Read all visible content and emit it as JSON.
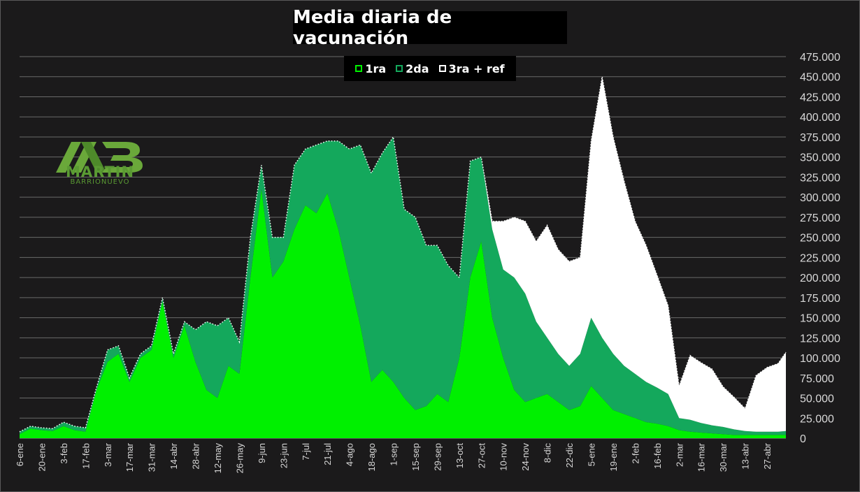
{
  "chart_data": {
    "type": "area",
    "title": "Media diaria de vacunación",
    "stacked": true,
    "x_start": "2021-01-06",
    "x_end": "2022-05-09",
    "ylim": [
      0,
      475000
    ],
    "yticks": [
      "0",
      "25.000",
      "50.000",
      "75.000",
      "100.000",
      "125.000",
      "150.000",
      "175.000",
      "200.000",
      "225.000",
      "250.000",
      "275.000",
      "300.000",
      "325.000",
      "350.000",
      "375.000",
      "400.000",
      "425.000",
      "450.000",
      "475.000"
    ],
    "xticks": [
      "6-ene",
      "20-ene",
      "3-feb",
      "17-feb",
      "3-mar",
      "17-mar",
      "31-mar",
      "14-abr",
      "28-abr",
      "12-may",
      "26-may",
      "9-jun",
      "23-jun",
      "7-jul",
      "21-jul",
      "4-ago",
      "18-ago",
      "1-sep",
      "15-sep",
      "29-sep",
      "13-oct",
      "27-oct",
      "10-nov",
      "24-nov",
      "8-dic",
      "22-dic",
      "5-ene",
      "19-ene",
      "2-feb",
      "16-feb",
      "2-mar",
      "16-mar",
      "30-mar",
      "13-abr",
      "27-abr"
    ],
    "grid": true,
    "legend_position": "top",
    "x": [
      "2021-01-06",
      "2021-01-13",
      "2021-01-20",
      "2021-01-27",
      "2021-02-03",
      "2021-02-10",
      "2021-02-17",
      "2021-02-24",
      "2021-03-03",
      "2021-03-10",
      "2021-03-17",
      "2021-03-24",
      "2021-03-31",
      "2021-04-07",
      "2021-04-14",
      "2021-04-21",
      "2021-04-28",
      "2021-05-05",
      "2021-05-12",
      "2021-05-19",
      "2021-05-26",
      "2021-06-02",
      "2021-06-09",
      "2021-06-16",
      "2021-06-23",
      "2021-06-30",
      "2021-07-07",
      "2021-07-14",
      "2021-07-21",
      "2021-07-28",
      "2021-08-04",
      "2021-08-11",
      "2021-08-18",
      "2021-08-25",
      "2021-09-01",
      "2021-09-08",
      "2021-09-15",
      "2021-09-22",
      "2021-09-29",
      "2021-10-06",
      "2021-10-13",
      "2021-10-20",
      "2021-10-27",
      "2021-11-03",
      "2021-11-10",
      "2021-11-17",
      "2021-11-24",
      "2021-12-01",
      "2021-12-08",
      "2021-12-15",
      "2021-12-22",
      "2021-12-29",
      "2022-01-05",
      "2022-01-12",
      "2022-01-19",
      "2022-01-26",
      "2022-02-02",
      "2022-02-09",
      "2022-02-16",
      "2022-02-23",
      "2022-03-02",
      "2022-03-09",
      "2022-03-16",
      "2022-03-23",
      "2022-03-30",
      "2022-04-06",
      "2022-04-13",
      "2022-04-20",
      "2022-04-27",
      "2022-05-04",
      "2022-05-09"
    ],
    "series": [
      {
        "name": "1ra",
        "color": "#00f000",
        "values": [
          5000,
          12000,
          10000,
          9000,
          15000,
          10000,
          8000,
          60000,
          95000,
          105000,
          70000,
          100000,
          110000,
          170000,
          100000,
          140000,
          95000,
          60000,
          50000,
          90000,
          80000,
          200000,
          310000,
          200000,
          220000,
          260000,
          290000,
          280000,
          305000,
          260000,
          200000,
          140000,
          70000,
          85000,
          70000,
          50000,
          35000,
          40000,
          55000,
          45000,
          100000,
          200000,
          245000,
          150000,
          100000,
          60000,
          45000,
          50000,
          55000,
          45000,
          35000,
          40000,
          65000,
          50000,
          35000,
          30000,
          25000,
          20000,
          18000,
          15000,
          10000,
          8000,
          7000,
          6000,
          5000,
          4000,
          4000,
          4000,
          4000,
          4000,
          4000
        ]
      },
      {
        "name": "2da",
        "color": "#14a85c",
        "values": [
          3000,
          3000,
          3000,
          3000,
          5000,
          5000,
          5000,
          3000,
          15000,
          10000,
          5000,
          5000,
          5000,
          5000,
          5000,
          5000,
          40000,
          85000,
          90000,
          60000,
          40000,
          50000,
          30000,
          50000,
          30000,
          80000,
          70000,
          85000,
          65000,
          110000,
          160000,
          225000,
          260000,
          270000,
          305000,
          235000,
          240000,
          200000,
          185000,
          170000,
          100000,
          145000,
          105000,
          110000,
          110000,
          140000,
          135000,
          95000,
          70000,
          60000,
          55000,
          65000,
          85000,
          75000,
          70000,
          60000,
          55000,
          50000,
          45000,
          40000,
          15000,
          15000,
          12000,
          10000,
          9000,
          7000,
          5000,
          4000,
          4000,
          4000,
          5000
        ]
      },
      {
        "name": "3ra + ref",
        "color": "#ffffff",
        "values": [
          0,
          0,
          0,
          0,
          0,
          0,
          0,
          0,
          0,
          0,
          0,
          0,
          0,
          0,
          0,
          0,
          0,
          0,
          0,
          0,
          0,
          0,
          0,
          0,
          0,
          0,
          0,
          0,
          0,
          0,
          0,
          0,
          0,
          0,
          0,
          0,
          0,
          0,
          0,
          0,
          0,
          0,
          0,
          10000,
          60000,
          75000,
          90000,
          100000,
          140000,
          130000,
          130000,
          120000,
          220000,
          325000,
          270000,
          230000,
          190000,
          170000,
          140000,
          110000,
          40000,
          80000,
          75000,
          70000,
          50000,
          40000,
          28000,
          70000,
          80000,
          85000,
          98000
        ]
      }
    ]
  }
}
